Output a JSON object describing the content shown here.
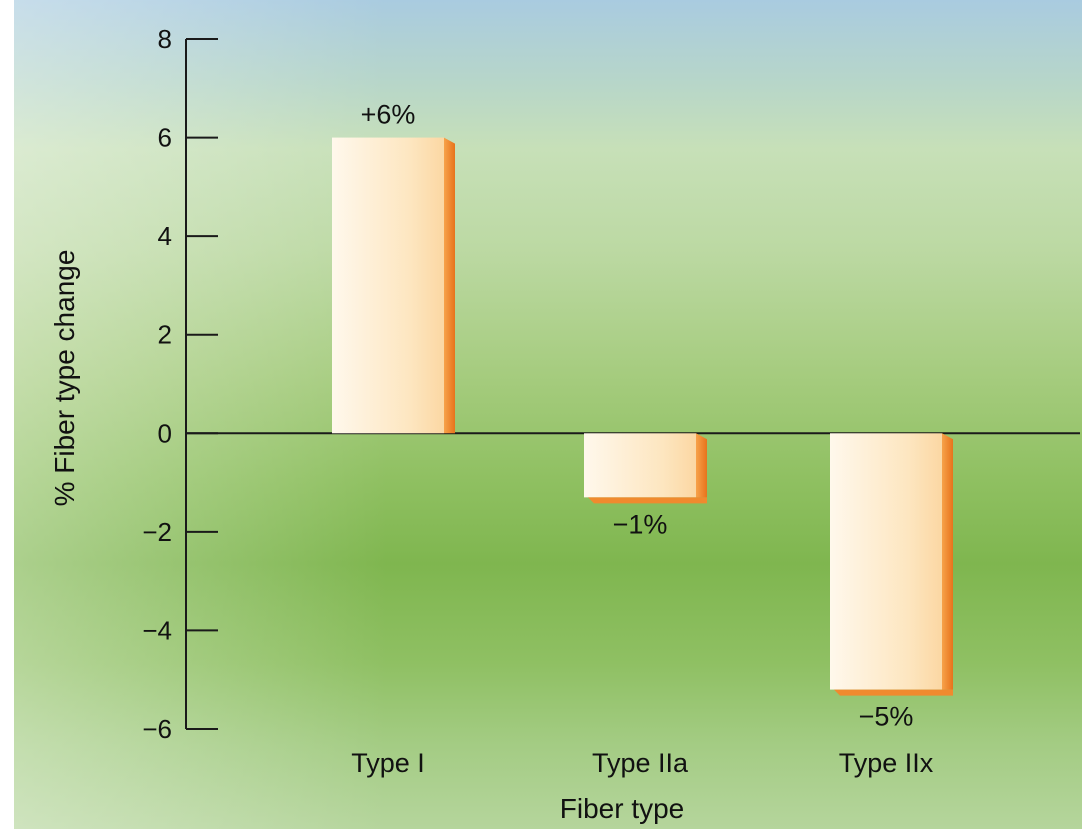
{
  "chart_data": {
    "type": "bar",
    "categories": [
      "Type I",
      "Type IIa",
      "Type IIx"
    ],
    "values": [
      6,
      -1.3,
      -5.2
    ],
    "data_labels": [
      "+6%",
      "−1%",
      "−5%"
    ],
    "xlabel": "Fiber type",
    "ylabel": "% Fiber type change",
    "ylim": [
      -6,
      8
    ],
    "yticks": [
      8,
      6,
      4,
      2,
      0,
      -2,
      -4,
      -6
    ],
    "ytick_labels": [
      "8",
      "6",
      "4",
      "2",
      "0",
      "−2",
      "−4",
      "−6"
    ],
    "grid": false,
    "colors": {
      "bar_face": "#fde9c6",
      "bar_light": "#fff6e6",
      "bar_edge": "#f08a2e",
      "axis": "#1a1a1a"
    }
  }
}
